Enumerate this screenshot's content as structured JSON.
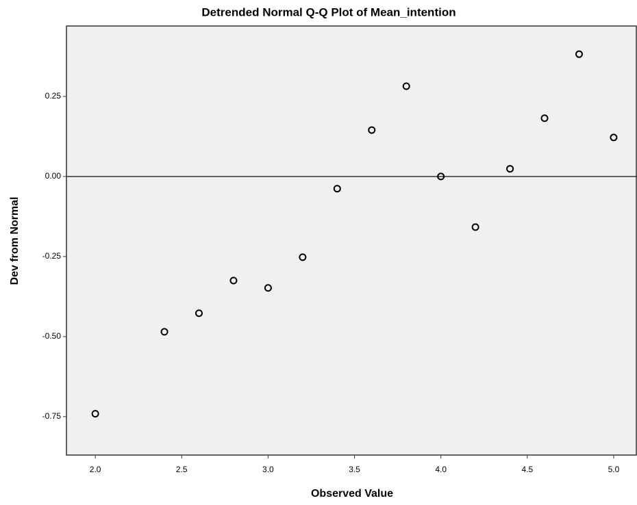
{
  "chart_data": {
    "type": "scatter",
    "title": "Detrended Normal Q-Q Plot of Mean_intention",
    "x_label": "Observed Value",
    "y_label": "Dev from Normal",
    "x": [
      2.0,
      2.4,
      2.6,
      2.8,
      3.0,
      3.2,
      3.4,
      3.6,
      3.8,
      4.0,
      4.2,
      4.4,
      4.6,
      4.8,
      5.0
    ],
    "values": [
      -0.741,
      -0.485,
      -0.427,
      -0.325,
      -0.348,
      -0.252,
      -0.038,
      0.145,
      0.282,
      0.0,
      -0.158,
      0.024,
      0.182,
      0.382,
      0.122
    ],
    "color": "#000000",
    "reference_line": 0,
    "xlim": [
      1.833,
      5.135
    ],
    "ylim": [
      -0.87,
      0.47
    ],
    "xticks": [
      {
        "value": 2,
        "label": "2.0"
      },
      {
        "value": 2.5,
        "label": "2.5"
      },
      {
        "value": 3,
        "label": "3.0"
      },
      {
        "value": 3.5,
        "label": "3.5"
      },
      {
        "value": 4,
        "label": "4.0"
      },
      {
        "value": 4.5,
        "label": "4.5"
      },
      {
        "value": 5,
        "label": "5.0"
      }
    ],
    "yticks": [
      0.25,
      {
        "value": 0,
        "label": "0.00"
      },
      -0.25,
      {
        "value": -0.5,
        "label": "-0.50"
      },
      -0.75
    ],
    "grid": false
  }
}
